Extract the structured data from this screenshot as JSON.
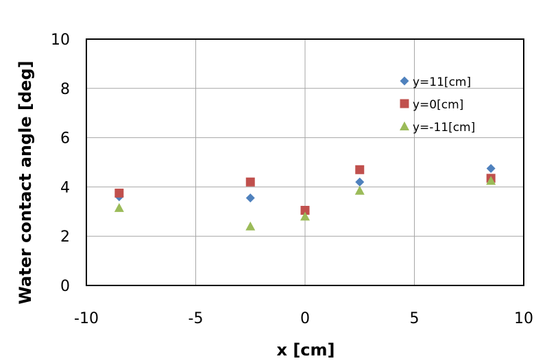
{
  "chart_data": {
    "type": "scatter",
    "title": "",
    "xlabel": "x [cm]",
    "ylabel": "Water contact angle  [deg]",
    "xlim": [
      -10,
      10
    ],
    "ylim": [
      0,
      10
    ],
    "x_ticks": [
      -10,
      -5,
      0,
      5,
      10
    ],
    "y_ticks": [
      0,
      2,
      4,
      6,
      8,
      10
    ],
    "grid": true,
    "legend_position": "top-right",
    "series": [
      {
        "name": "y=11[cm]",
        "marker": "diamond",
        "color": "#4F81BD",
        "points": [
          {
            "x": -8.5,
            "y": 3.6
          },
          {
            "x": -2.5,
            "y": 3.55
          },
          {
            "x": 0,
            "y": 3.0
          },
          {
            "x": 2.5,
            "y": 4.2
          },
          {
            "x": 8.5,
            "y": 4.75
          }
        ]
      },
      {
        "name": "y=0[cm]",
        "marker": "square",
        "color": "#C0504D",
        "points": [
          {
            "x": -8.5,
            "y": 3.75
          },
          {
            "x": -2.5,
            "y": 4.2
          },
          {
            "x": 0,
            "y": 3.05
          },
          {
            "x": 2.5,
            "y": 4.7
          },
          {
            "x": 8.5,
            "y": 4.35
          }
        ]
      },
      {
        "name": "y=-11[cm]",
        "marker": "triangle",
        "color": "#9BBB59",
        "points": [
          {
            "x": -8.5,
            "y": 3.15
          },
          {
            "x": -2.5,
            "y": 2.4
          },
          {
            "x": 0,
            "y": 2.8
          },
          {
            "x": 2.5,
            "y": 3.85
          },
          {
            "x": 8.5,
            "y": 4.25
          }
        ]
      }
    ]
  }
}
